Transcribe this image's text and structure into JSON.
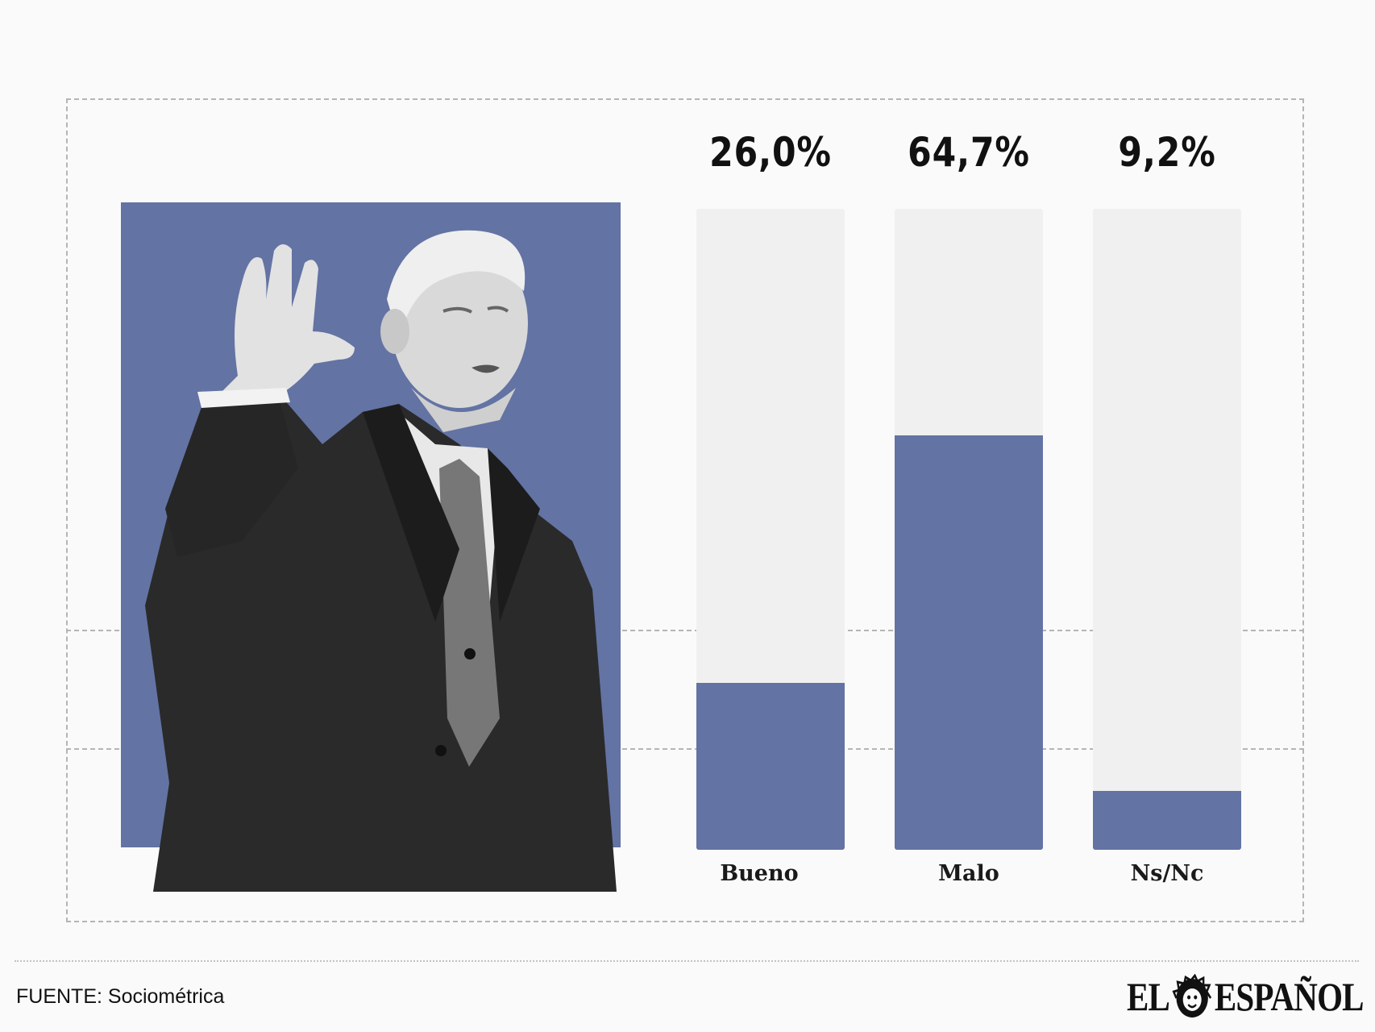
{
  "chart_data": {
    "type": "bar",
    "categories": [
      "Bueno",
      "Malo",
      "Ns/Nc"
    ],
    "values": [
      26.0,
      64.7,
      9.2
    ],
    "value_labels": [
      "26,0%",
      "64,7%",
      "9,2%"
    ],
    "ylim": [
      0,
      100
    ],
    "unit": "%",
    "colors": {
      "fill": "#6373a3",
      "track": "#f0f0f0"
    }
  },
  "footer": {
    "source": "FUENTE: Sociométrica",
    "logo_left": "EL",
    "logo_right": "ESPAÑOL"
  }
}
